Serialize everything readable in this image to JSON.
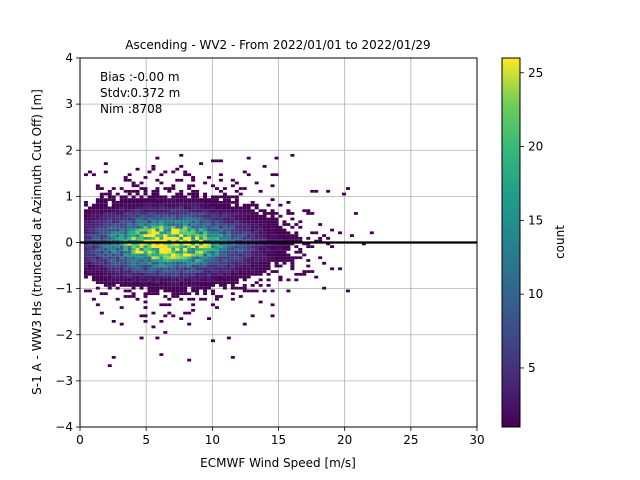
{
  "chart_data": {
    "type": "heatmap",
    "title": "Ascending - WV2 - From 2022/01/01 to 2022/01/29",
    "xlabel": "ECMWF Wind Speed [m/s]",
    "ylabel": "S-1 A - WW3 Hs (truncated at Azimuth Cut Off) [m]",
    "xlim": [
      0,
      30
    ],
    "ylim": [
      -4,
      4
    ],
    "x_ticks": [
      "0",
      "5",
      "10",
      "15",
      "20",
      "25",
      "30"
    ],
    "y_ticks": [
      "4",
      "3",
      "2",
      "1",
      "0",
      "−1",
      "−2",
      "−3",
      "−4"
    ],
    "grid": true,
    "zero_line_y": 0,
    "annotations": [
      "Bias :-0.00 m",
      "Stdv:0.372 m",
      "Nim :8708"
    ],
    "colorbar": {
      "label": "count",
      "range": [
        1,
        26
      ],
      "ticks": [
        "5",
        "10",
        "15",
        "20",
        "25"
      ],
      "colormap": "viridis"
    },
    "density": {
      "peak_count": 26,
      "center_x": 6.5,
      "center_y": -0.05,
      "spread_x": 3.3,
      "spread_y": 0.37,
      "total_points": 8708
    }
  }
}
